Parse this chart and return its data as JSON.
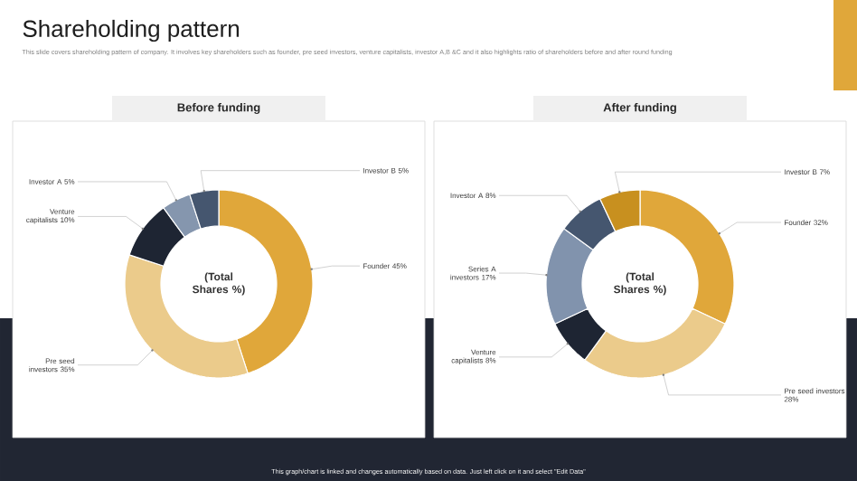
{
  "chart_data": [
    {
      "type": "other",
      "title": "Shareholding pattern",
      "subtitle": "This slide covers shareholding pattern of company. It involves key shareholders such as founder, pre seed investors, venture capitalists, investor A,B &C and it also highlights ratio of shareholders before and after round funding",
      "annotations": [
        "This graph/chart is linked and changes automatically based on data. Just left click on it and select \"Edit Data\""
      ]
    },
    {
      "type": "donut",
      "title": "Before funding",
      "annotations": [
        "(Total Shares %)"
      ],
      "categories": [
        "Founder",
        "Pre seed investors",
        "Venture capitalists",
        "Investor A",
        "Investor B"
      ],
      "values": [
        45,
        35,
        10,
        5,
        5
      ],
      "value_labels": [
        "45%",
        "35%",
        "10%",
        "5%",
        "5%"
      ],
      "colors": [
        "#e0a73a",
        "#ebcb8b",
        "#1e2533",
        "#8596ae",
        "#45566f"
      ]
    },
    {
      "type": "donut",
      "title": "After funding",
      "annotations": [
        "(Total Shares %)"
      ],
      "categories": [
        "Founder",
        "Pre seed investors",
        "Venture capitalists",
        "Series A investors",
        "Investor A",
        "Investor B"
      ],
      "values": [
        32,
        28,
        8,
        17,
        8,
        7
      ],
      "value_labels": [
        "32%",
        "28%",
        "8%",
        "17%",
        "8%",
        "7%"
      ],
      "colors": [
        "#e0a73a",
        "#ebcb8b",
        "#1e2533",
        "#8193ad",
        "#45566f",
        "#c8901f"
      ]
    }
  ]
}
